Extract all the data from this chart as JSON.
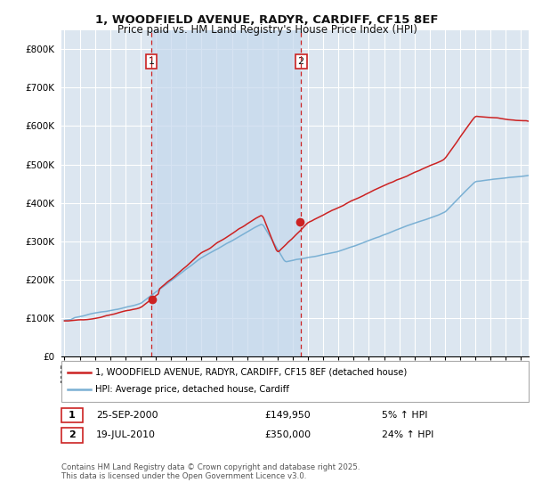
{
  "title1": "1, WOODFIELD AVENUE, RADYR, CARDIFF, CF15 8EF",
  "title2": "Price paid vs. HM Land Registry's House Price Index (HPI)",
  "background_color": "#ffffff",
  "plot_bg_color": "#dce6f0",
  "shade_color": "#c5d8ed",
  "grid_color": "#ffffff",
  "red_color": "#cc2222",
  "blue_color": "#7ab0d4",
  "legend_label_red": "1, WOODFIELD AVENUE, RADYR, CARDIFF, CF15 8EF (detached house)",
  "legend_label_blue": "HPI: Average price, detached house, Cardiff",
  "annotation1": {
    "label": "1",
    "date": "25-SEP-2000",
    "price": "£149,950",
    "pct": "5% ↑ HPI"
  },
  "annotation2": {
    "label": "2",
    "date": "19-JUL-2010",
    "price": "£350,000",
    "pct": "24% ↑ HPI"
  },
  "footer": "Contains HM Land Registry data © Crown copyright and database right 2025.\nThis data is licensed under the Open Government Licence v3.0.",
  "ylim": [
    0,
    850000
  ],
  "yticks": [
    0,
    100000,
    200000,
    300000,
    400000,
    500000,
    600000,
    700000,
    800000
  ],
  "ytick_labels": [
    "£0",
    "£100K",
    "£200K",
    "£300K",
    "£400K",
    "£500K",
    "£600K",
    "£700K",
    "£800K"
  ],
  "sale1_year": 2000.71,
  "sale1_price": 149950,
  "sale2_year": 2010.54,
  "sale2_price": 350000,
  "xmin": 1995,
  "xmax": 2025.5
}
